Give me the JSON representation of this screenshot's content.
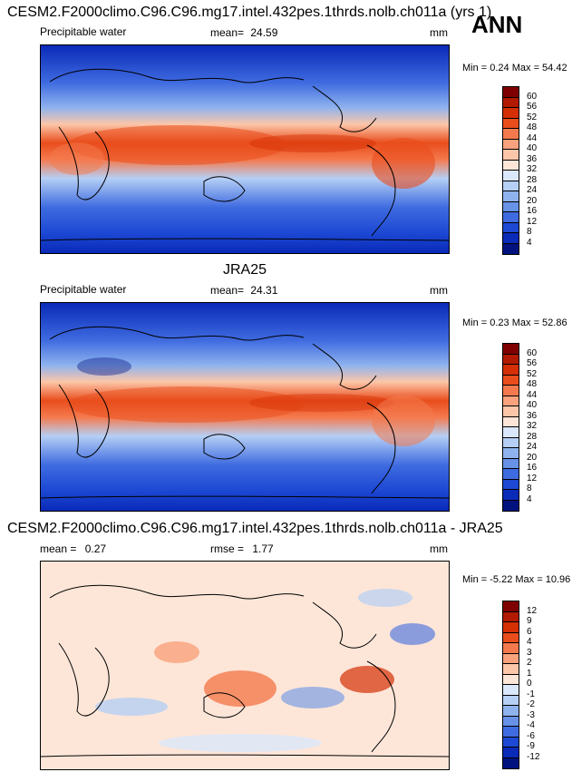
{
  "header": {
    "season": "ANN"
  },
  "panels": [
    {
      "title": "CESM2.F2000climo.C96.C96.mg17.intel.432pes.1thrds.nolb.ch011a (yrs 1)",
      "variable": "Precipitable water",
      "mean_label": "mean=",
      "mean_value": "24.59",
      "units": "mm",
      "minmax": "Min =  0.24 Max =  54.42",
      "colorbar": {
        "labels": [
          "60",
          "56",
          "52",
          "48",
          "44",
          "40",
          "36",
          "32",
          "28",
          "24",
          "20",
          "16",
          "12",
          "8",
          "4"
        ],
        "colors": [
          "#7f0000",
          "#b21a00",
          "#d42f05",
          "#e94d1c",
          "#f47a4e",
          "#f9a27d",
          "#fcc6a8",
          "#fde6d8",
          "#dbe7fb",
          "#b5cff5",
          "#8fb3ee",
          "#6792e6",
          "#3f6be0",
          "#1d49d4",
          "#0a2ab8",
          "#01127f"
        ]
      }
    },
    {
      "title": "JRA25",
      "variable": "Precipitable water",
      "mean_label": "mean=",
      "mean_value": "24.31",
      "units": "mm",
      "minmax": "Min =  0.23 Max =  52.86",
      "colorbar": {
        "labels": [
          "60",
          "56",
          "52",
          "48",
          "44",
          "40",
          "36",
          "32",
          "28",
          "24",
          "20",
          "16",
          "12",
          "8",
          "4"
        ],
        "colors": [
          "#7f0000",
          "#b21a00",
          "#d42f05",
          "#e94d1c",
          "#f47a4e",
          "#f9a27d",
          "#fcc6a8",
          "#fde6d8",
          "#dbe7fb",
          "#b5cff5",
          "#8fb3ee",
          "#6792e6",
          "#3f6be0",
          "#1d49d4",
          "#0a2ab8",
          "#01127f"
        ]
      }
    },
    {
      "title": "CESM2.F2000climo.C96.C96.mg17.intel.432pes.1thrds.nolb.ch011a - JRA25",
      "mean_label": "mean =",
      "mean_value": "0.27",
      "rmse_label": "rmse =",
      "rmse_value": "1.77",
      "units": "mm",
      "minmax": "Min =  -5.22 Max =  10.96",
      "colorbar": {
        "labels": [
          "12",
          "9",
          "6",
          "4",
          "3",
          "2",
          "1",
          "0",
          "-1",
          "-2",
          "-3",
          "-4",
          "-6",
          "-9",
          "-12"
        ],
        "colors": [
          "#7f0000",
          "#b21a00",
          "#d42f05",
          "#e94d1c",
          "#f47a4e",
          "#f9a27d",
          "#fcc6a8",
          "#fde6d8",
          "#dbe7fb",
          "#b5cff5",
          "#8fb3ee",
          "#6792e6",
          "#3f6be0",
          "#1d49d4",
          "#0a2ab8",
          "#01127f"
        ]
      }
    }
  ]
}
